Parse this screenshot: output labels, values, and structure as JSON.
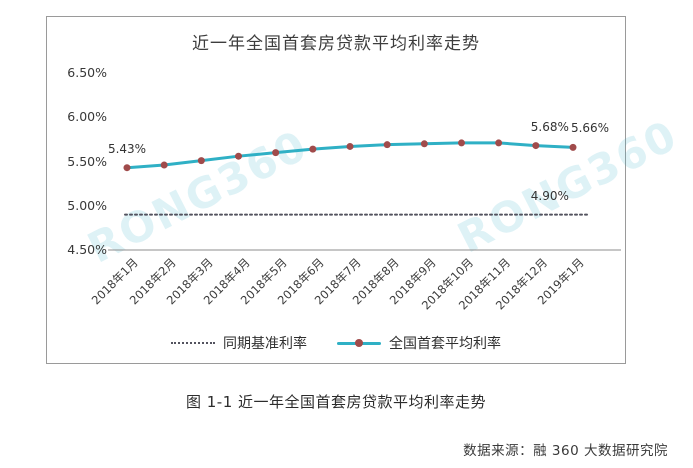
{
  "page": {
    "watermark": "RONG360",
    "caption": "图 1-1 近一年全国首套房贷款平均利率走势",
    "source": "数据来源：融 360 大数据研究院"
  },
  "colors": {
    "series_line": "#2fb0c5",
    "series_marker": "#a04b4b",
    "benchmark_dotted": "#53535f",
    "axis_line": "#8c8c8c",
    "panel_border": "#9a9a9a",
    "text": "#333333",
    "watermark": "rgba(47,176,197,0.16)"
  },
  "chart_data": {
    "type": "line",
    "title": "近一年全国首套房贷款平均利率走势",
    "categories": [
      "2018年1月",
      "2018年2月",
      "2018年3月",
      "2018年4月",
      "2018年5月",
      "2018年6月",
      "2018年7月",
      "2018年8月",
      "2018年9月",
      "2018年10月",
      "2018年11月",
      "2018年12月",
      "2019年1月"
    ],
    "series": [
      {
        "name": "同期基准利率",
        "style": "dotted",
        "color": "#53535f",
        "values": [
          4.9,
          4.9,
          4.9,
          4.9,
          4.9,
          4.9,
          4.9,
          4.9,
          4.9,
          4.9,
          4.9,
          4.9,
          4.9
        ]
      },
      {
        "name": "全国首套平均利率",
        "style": "solid-marker",
        "color": "#2fb0c5",
        "marker_color": "#a04b4b",
        "values": [
          5.43,
          5.46,
          5.51,
          5.56,
          5.6,
          5.64,
          5.67,
          5.69,
          5.7,
          5.71,
          5.71,
          5.68,
          5.66
        ]
      }
    ],
    "ylim": [
      4.5,
      6.5
    ],
    "ytick_labels": [
      "6.50%",
      "6.00%",
      "5.50%",
      "5.00%",
      "4.50%"
    ],
    "ytick_values": [
      6.5,
      6.0,
      5.5,
      5.0,
      4.5
    ],
    "grid": false,
    "legend_position": "bottom",
    "annotations": [
      {
        "text": "5.43%",
        "series": 1,
        "index": 0
      },
      {
        "text": "5.68%",
        "series": 1,
        "index": 11
      },
      {
        "text": "5.66%",
        "series": 1,
        "index": 12
      },
      {
        "text": "4.90%",
        "series": 0,
        "index": 11
      }
    ]
  }
}
